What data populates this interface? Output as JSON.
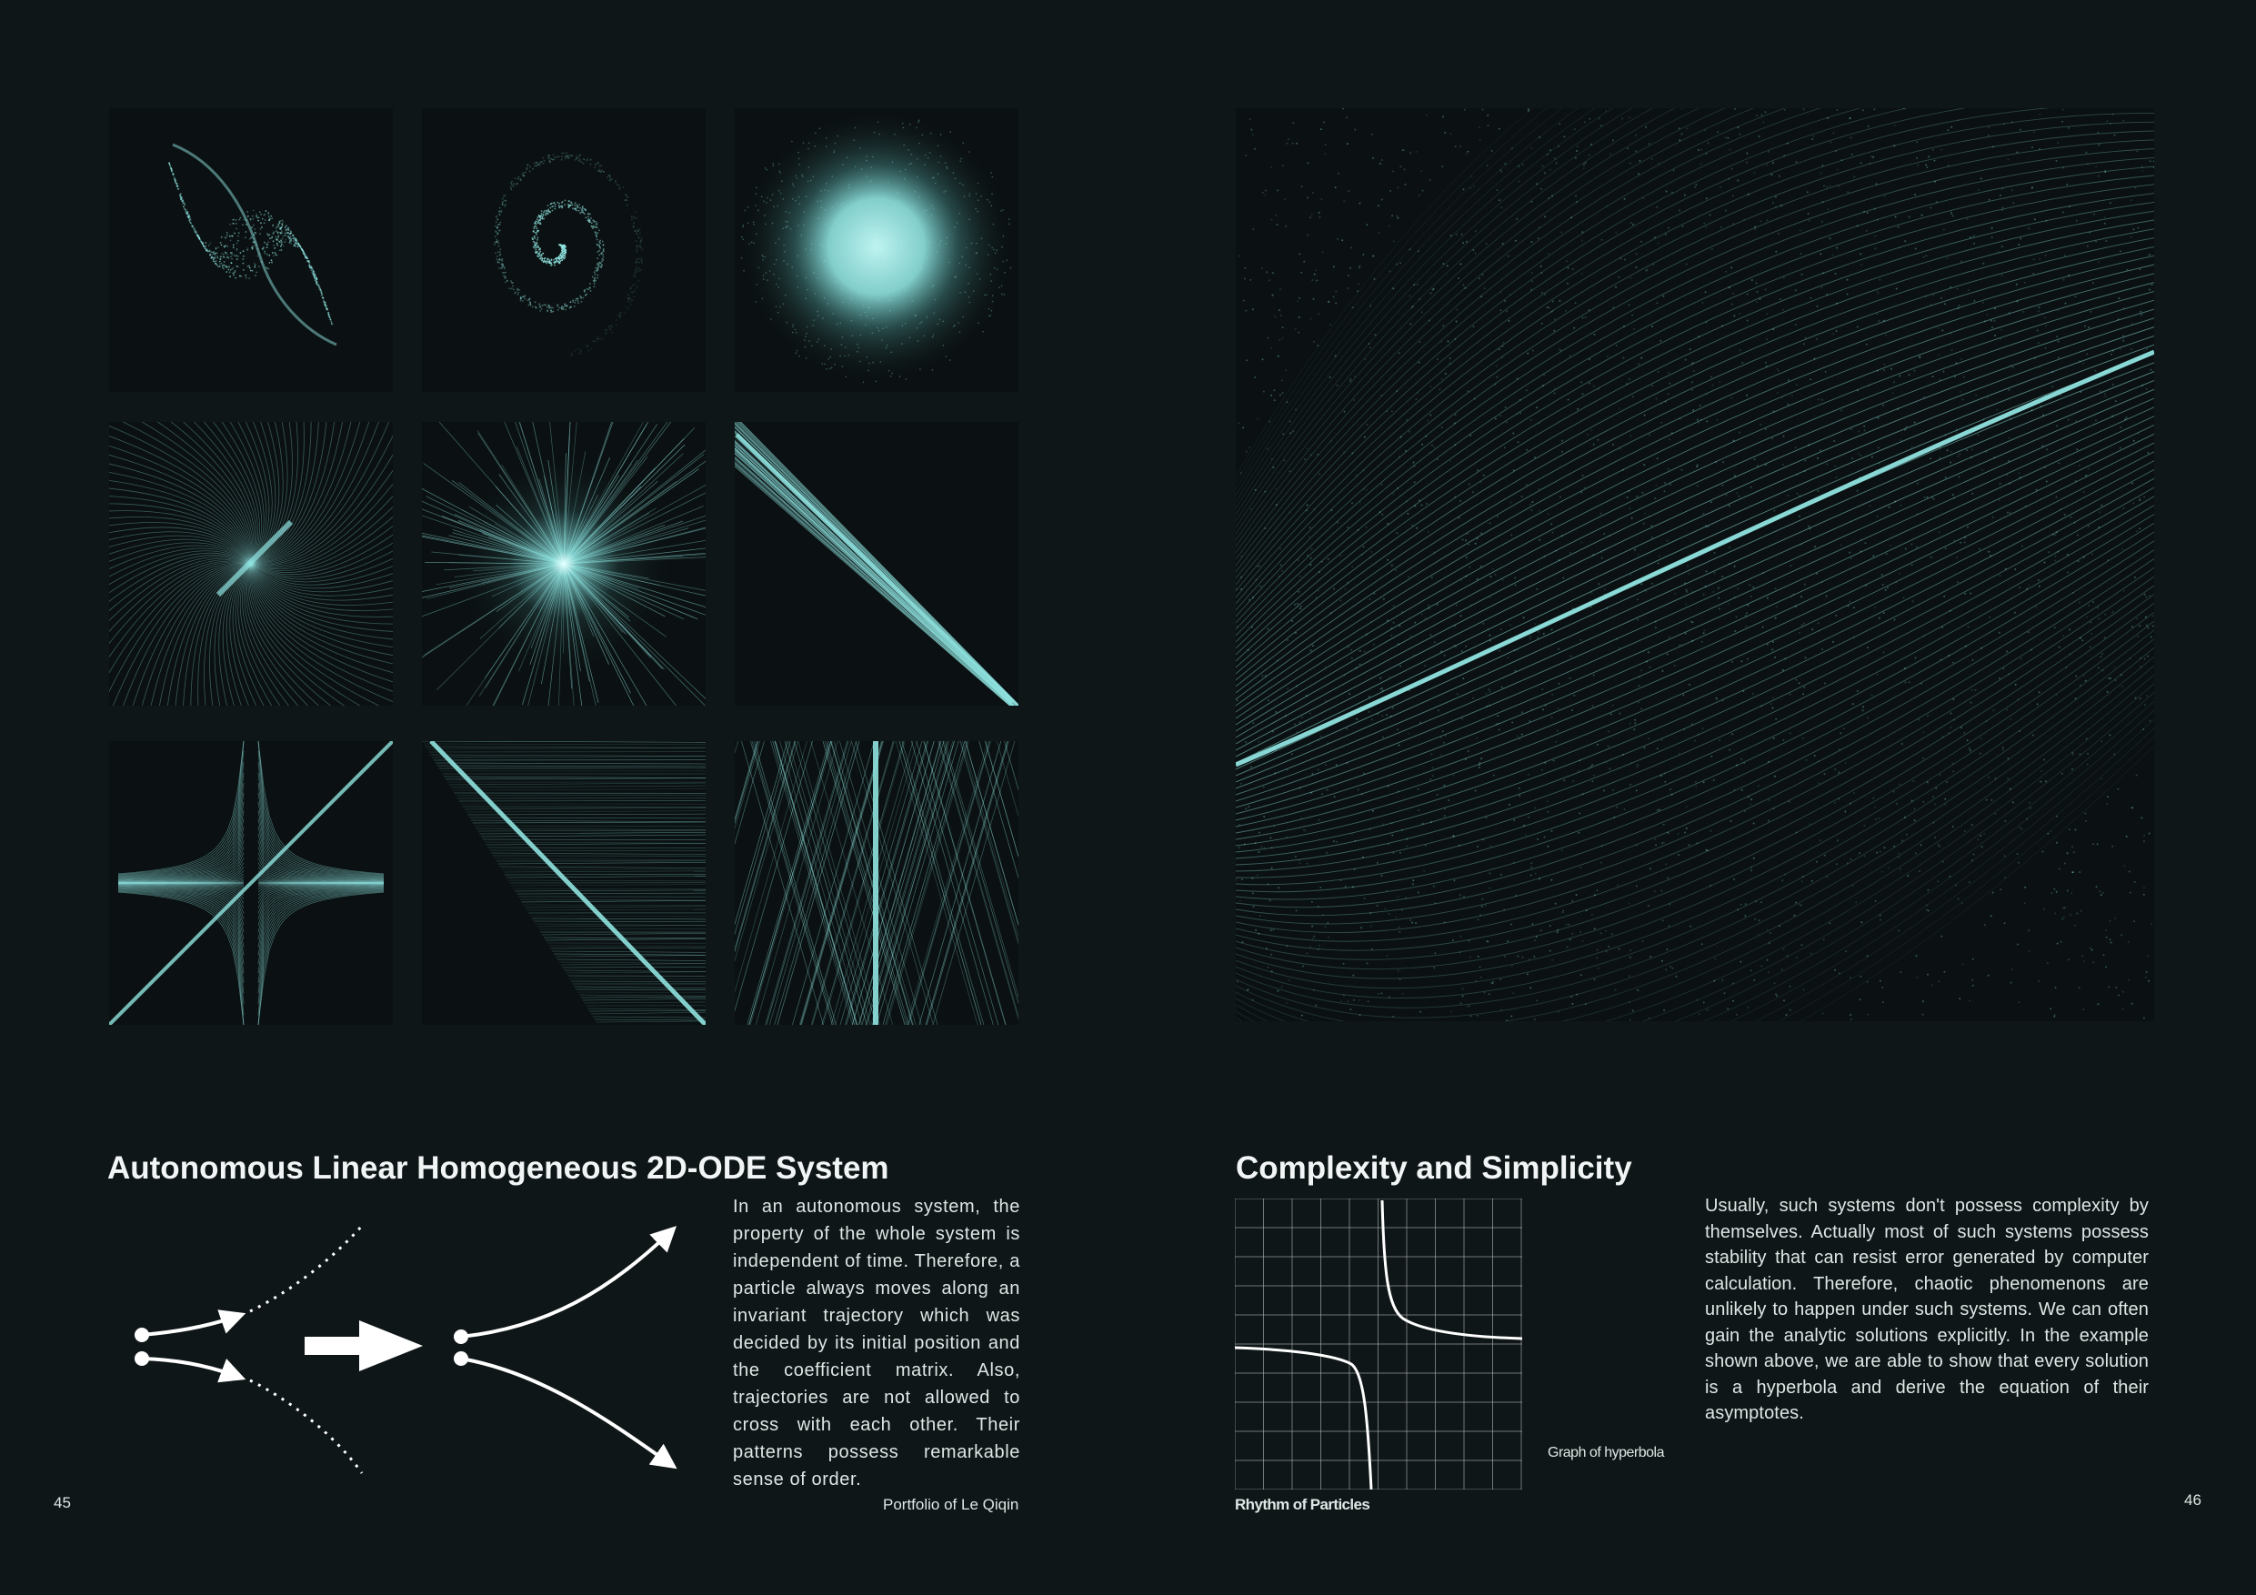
{
  "left_page": {
    "title": "Autonomous Linear Homogeneous 2D-ODE System",
    "body": "In an autonomous system, the property of the whole system is independent of time. Therefore, a particle always moves along an invariant trajectory which was decided by its initial position and the coefficient matrix. Also, trajectories are not allowed to cross with each other. Their patterns possess remarkable sense of order.",
    "footer": "Portfolio of Le Qiqin",
    "page_number": "45"
  },
  "right_page": {
    "title": "Complexity and Simplicity",
    "body": "Usually, such systems don't possess complexity by themselves. Actually most of such systems possess stability that can resist error generated by computer calculation. Therefore, chaotic phenomenons are unlikely to happen under such systems. We can often gain the analytic solutions explicitly. In the example shown above, we are able to show that every solution is a hyperbola and derive the equation of their asymptotes.",
    "graph_caption": "Graph of hyperbola",
    "footer": "Rhythm of Particles",
    "page_number": "46"
  },
  "colors": {
    "background": "#0f1617",
    "particle": "#8fe3e0",
    "text": "#e9efee"
  },
  "tiles": [
    {
      "pattern": "s-curve"
    },
    {
      "pattern": "spiral"
    },
    {
      "pattern": "blob"
    },
    {
      "pattern": "twisted-star"
    },
    {
      "pattern": "star-burst"
    },
    {
      "pattern": "diagonal-line"
    },
    {
      "pattern": "saddle"
    },
    {
      "pattern": "diagonal-sheet"
    },
    {
      "pattern": "vertical-line"
    }
  ]
}
